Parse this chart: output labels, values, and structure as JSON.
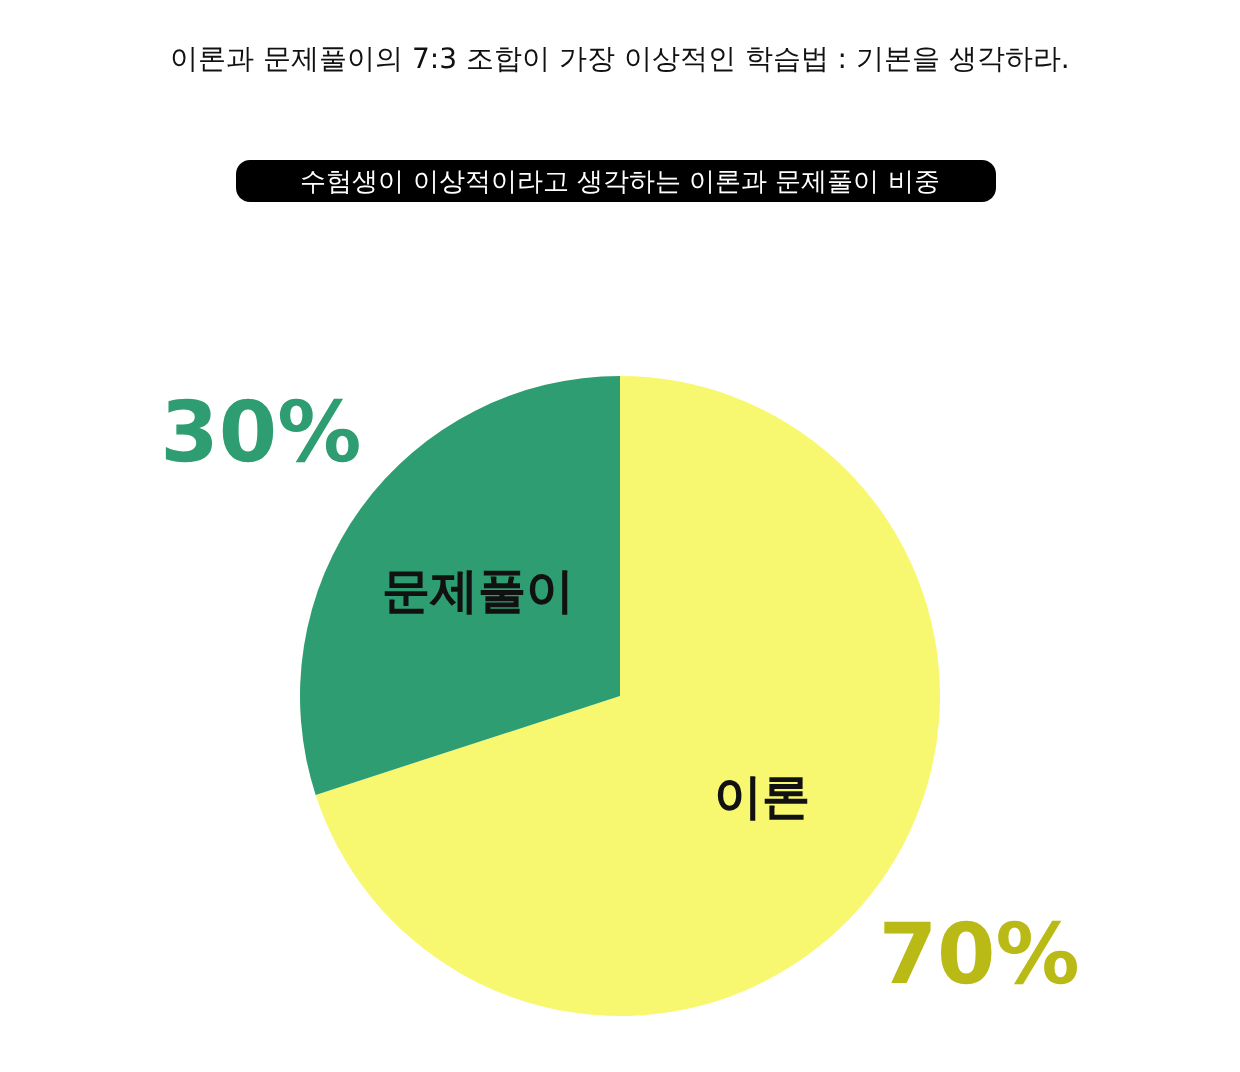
{
  "chart_data": {
    "type": "pie",
    "title": "이론과 문제풀이의 7:3 조합이 가장 이상적인 학습법 : 기본을 생각하라.",
    "subtitle": "수험생이 이상적이라고 생각하는 이론과 문제풀이 비중",
    "categories": [
      "이론",
      "문제풀이"
    ],
    "values": [
      70,
      30
    ],
    "colors": [
      "#f8f870",
      "#2e9e72"
    ],
    "value_labels": [
      "70%",
      "30%"
    ]
  }
}
